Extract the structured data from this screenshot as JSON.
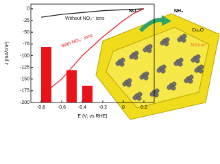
{
  "chart_data": [
    {
      "type": "line",
      "x_label": "E (V; vs RHE)",
      "y_label": "J (mA/cm²)",
      "x": [
        -0.8,
        -0.6,
        -0.4,
        -0.2,
        0.0,
        0.1,
        0.2
      ],
      "series": [
        {
          "name": "Without NO₃⁻ ions",
          "color": "#111111",
          "values": [
            -18,
            -12,
            -8,
            -4,
            -2,
            -1,
            0
          ]
        },
        {
          "name": "With NO₃⁻ ions",
          "color": "#e8141a",
          "values": [
            -185,
            -150,
            -100,
            -60,
            -25,
            -10,
            0
          ]
        }
      ],
      "xlim": [
        -0.9,
        0.3
      ],
      "xticks": [
        -0.8,
        -0.6,
        -0.4,
        -0.2,
        0.0,
        0.2
      ],
      "ylim": [
        -200,
        10
      ],
      "yticks": [
        0,
        -25,
        -50,
        -75,
        -100,
        -125,
        -150,
        -175,
        -200
      ]
    },
    {
      "type": "bar",
      "categories": [
        null,
        null,
        null
      ],
      "values": [
        60,
        35,
        18
      ],
      "color": "#e8141a",
      "ylim": [
        0,
        100
      ]
    }
  ],
  "illustration": {
    "reactant": "NO₃⁻",
    "product": "NH₃",
    "particle": "Cu₂O",
    "support": "MXene"
  }
}
